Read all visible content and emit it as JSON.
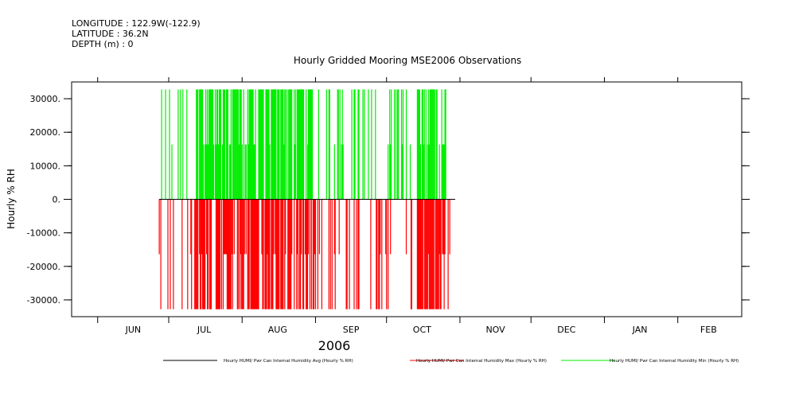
{
  "header": {
    "longitude": "LONGITUDE : 122.9W(-122.9)",
    "latitude": "LATITUDE : 36.2N",
    "depth": "DEPTH (m) : 0"
  },
  "chart_data": {
    "type": "bar",
    "title": "Hourly Gridded Mooring MSE2006 Observations",
    "ylabel": "Hourly % RH",
    "xlabel": "2006",
    "ylim": [
      -35000,
      35000
    ],
    "xlim": [
      "2006-05-21",
      "2007-02-28"
    ],
    "yticks": [
      -30000,
      -20000,
      -10000,
      0,
      10000,
      20000,
      30000
    ],
    "ytick_labels": [
      "-30000.",
      "-20000.",
      "-10000.",
      "0.",
      "10000.",
      "20000.",
      "30000."
    ],
    "month_boundaries": [
      "2006-06-01",
      "2006-07-01",
      "2006-08-01",
      "2006-09-01",
      "2006-10-01",
      "2006-11-01",
      "2006-12-01",
      "2007-01-01",
      "2007-02-01"
    ],
    "month_labels": [
      {
        "label": "JUN",
        "date": "2006-06-16"
      },
      {
        "label": "JUL",
        "date": "2006-07-16"
      },
      {
        "label": "AUG",
        "date": "2006-08-16"
      },
      {
        "label": "SEP",
        "date": "2006-09-16"
      },
      {
        "label": "OCT",
        "date": "2006-10-16"
      },
      {
        "label": "NOV",
        "date": "2006-11-16"
      },
      {
        "label": "DEC",
        "date": "2006-12-16"
      },
      {
        "label": "JAN",
        "date": "2007-01-16"
      },
      {
        "label": "FEB",
        "date": "2007-02-14"
      }
    ],
    "series": [
      {
        "name": "Hourly HUMI/ Pwr Can Internal Humidity Avg (Hourly % RH)",
        "color": "#000000",
        "kind": "line",
        "date_range": [
          "2006-06-27",
          "2006-10-30"
        ],
        "value": 0
      },
      {
        "name": "Hourly HUMI/ Pwr Can Internal Humidity Max (Hourly % RH)",
        "color": "#ff0000",
        "kind": "spikes",
        "value": -32768,
        "date_range": [
          "2006-06-27",
          "2006-10-28"
        ],
        "dense_ranges": [
          [
            "2006-07-12",
            "2006-09-01"
          ],
          [
            "2006-10-14",
            "2006-10-26"
          ]
        ]
      },
      {
        "name": "Hourly HUMI/ Pwr Can Internal Humidity Min (Hourly % RH)",
        "color": "#00ee00",
        "kind": "spikes",
        "value": 32767,
        "date_range": [
          "2006-06-27",
          "2006-10-28"
        ],
        "dense_ranges": [
          [
            "2006-07-12",
            "2006-09-01"
          ],
          [
            "2006-10-14",
            "2006-10-26"
          ]
        ]
      }
    ]
  }
}
